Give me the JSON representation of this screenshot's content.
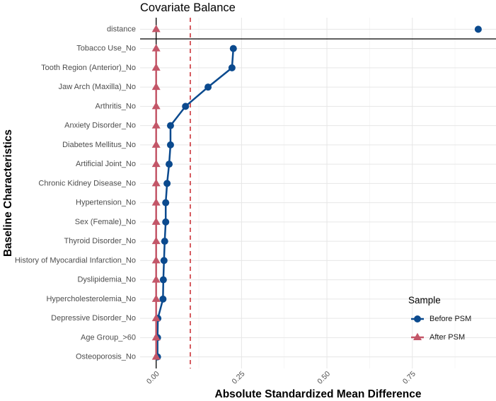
{
  "chart_data": {
    "type": "line",
    "title": "Covariate Balance",
    "xlabel": "Absolute Standardized Mean Difference",
    "ylabel": "Baseline Characteristics",
    "categories": [
      "distance",
      "Tobacco Use_No",
      "Tooth Region (Anterior)_No",
      "Jaw Arch (Maxilla)_No",
      "Arthritis_No",
      "Anxiety Disorder_No",
      "Diabetes Mellitus_No",
      "Artificial Joint_No",
      "Chronic Kidney Disease_No",
      "Hypertension_No",
      "Sex (Female)_No",
      "Thyroid Disorder_No",
      "History of Myocardial Infarction_No",
      "Dyslipidemia_No",
      "Hypercholesterolemia_No",
      "Depressive Disorder_No",
      "Age Group_>60",
      "Osteoporosis_No"
    ],
    "series": [
      {
        "name": "Before PSM",
        "marker": "circle",
        "color": "#0b4a8e",
        "values": [
          0.943,
          0.226,
          0.222,
          0.152,
          0.086,
          0.042,
          0.042,
          0.038,
          0.032,
          0.028,
          0.028,
          0.025,
          0.023,
          0.021,
          0.02,
          0.005,
          0.004,
          0.004
        ]
      },
      {
        "name": "After PSM",
        "marker": "triangle",
        "color": "#c35668",
        "values": [
          0,
          0,
          0,
          0,
          0,
          0,
          0,
          0,
          0,
          0,
          0,
          0,
          0,
          0,
          0,
          0,
          0,
          0
        ]
      }
    ],
    "xlim": [
      -0.047,
      0.995
    ],
    "xticks": [
      0,
      0.25,
      0.5,
      0.75
    ],
    "xtick_labels": [
      "0.00",
      "0.25",
      "0.50",
      "0.75"
    ],
    "reference_lines": [
      {
        "x": 0,
        "dashed": false,
        "color": "#000000"
      },
      {
        "x": 0.1,
        "dashed": true,
        "color": "#c9262c"
      }
    ],
    "grid": true,
    "legend": {
      "title": "Sample",
      "position": "bottom-right"
    }
  }
}
